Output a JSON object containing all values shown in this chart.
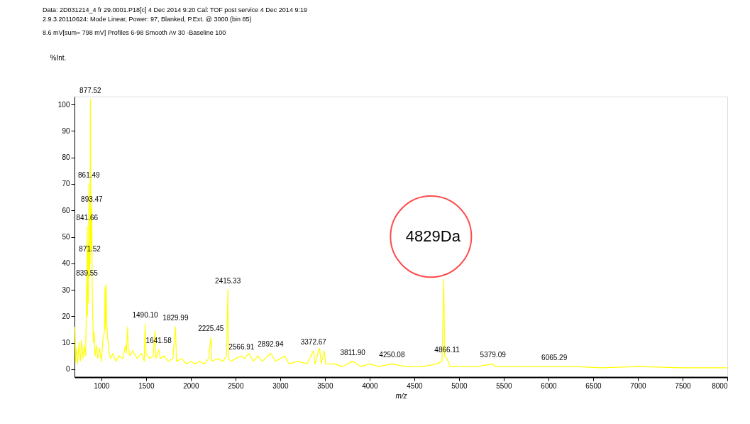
{
  "chart_data": {
    "type": "line",
    "title": "Data: 2D031214_4 fr 29.0001.P18[c] 4 Dec 2014 9:20 Cal: TOF post service 4 Dec 2014 9:19\n2.9.3.20110624: Mode Linear, Power: 97, Blanked, P.Ext. @ 3000 (bin 85)",
    "subtitle": "8.6 mV[sum= 798 mV] Profiles 6-98 Smooth Av 30 -Baseline 100",
    "xlabel": "m/z",
    "ylabel": "%Int.",
    "x": [
      706,
      712,
      720,
      735,
      750,
      765,
      780,
      795,
      810,
      825,
      835,
      839.55,
      841.66,
      845,
      850,
      855,
      861.49,
      866,
      871.52,
      875,
      877.52,
      880,
      885,
      893.47,
      898,
      905,
      912,
      920,
      930,
      945,
      960,
      980,
      1000,
      1020,
      1035,
      1042,
      1047,
      1053,
      1060,
      1070,
      1085,
      1100,
      1130,
      1160,
      1200,
      1240,
      1270,
      1280,
      1294,
      1300,
      1320,
      1350,
      1400,
      1450,
      1480,
      1490.1,
      1500,
      1540,
      1580,
      1600,
      1610,
      1641.58,
      1660,
      1700,
      1750,
      1800,
      1829.99,
      1840,
      1900,
      1950,
      2000,
      2050,
      2100,
      2150,
      2200,
      2225.45,
      2235,
      2300,
      2360,
      2400,
      2415.33,
      2420,
      2450,
      2500,
      2566.91,
      2600,
      2650,
      2700,
      2750,
      2800,
      2892.94,
      2950,
      3000,
      3050,
      3100,
      3200,
      3300,
      3372.67,
      3390,
      3440,
      3460,
      3490,
      3510,
      3600,
      3700,
      3811.9,
      3900,
      4000,
      4100,
      4250.08,
      4400,
      4600,
      4750,
      4810,
      4829,
      4840,
      4866.11,
      4900,
      5000,
      5200,
      5379.09,
      5400,
      5600,
      5800,
      6065.29,
      6300,
      6600,
      7000,
      7500,
      8000
    ],
    "series": [
      {
        "color": "#ffff00",
        "values": [
          16,
          3,
          8,
          2,
          10,
          3,
          11,
          4,
          9,
          5,
          30,
          33,
          54,
          20,
          47,
          25,
          70,
          35,
          42,
          40,
          102,
          82,
          45,
          61,
          30,
          18,
          10,
          14,
          5,
          9,
          4,
          8,
          3,
          12,
          14,
          31,
          15,
          32,
          18,
          12,
          7,
          4,
          6,
          3,
          5,
          4,
          9,
          6,
          16,
          9,
          5,
          7,
          4,
          6,
          3,
          17,
          6,
          4,
          5,
          14.5,
          4,
          7.4,
          4,
          5,
          3,
          4,
          16,
          3,
          4,
          2,
          3,
          2,
          3,
          2,
          4,
          12,
          3,
          4,
          3,
          5,
          30,
          4,
          3,
          4,
          5,
          4,
          6,
          3,
          5,
          3,
          6,
          3,
          4,
          5,
          2,
          3,
          2,
          7,
          2,
          8,
          2,
          7,
          2,
          2,
          1,
          3,
          1,
          2,
          1,
          2,
          1,
          1,
          2,
          3,
          34,
          5,
          4,
          1,
          1,
          1,
          2,
          1,
          1,
          1,
          1,
          1,
          0.5,
          1,
          0.5,
          0.5
        ]
      }
    ],
    "xlim": [
      700,
      8000
    ],
    "ylim": [
      -3,
      103
    ],
    "xticks": [
      1000,
      1500,
      2000,
      2500,
      3000,
      3500,
      4000,
      4500,
      5000,
      5500,
      6000,
      6500,
      7000,
      7500,
      8000
    ],
    "yticks": [
      0,
      10,
      20,
      30,
      40,
      50,
      60,
      70,
      80,
      90,
      100
    ],
    "grid": false,
    "marker": "none",
    "line_style": "solid",
    "annotations": [
      {
        "text": "4829Da",
        "x": 4829,
        "y": 34
      },
      {
        "text": "877.52",
        "x": 877.52,
        "y": 102
      },
      {
        "text": "861.49",
        "x": 861.49,
        "y": 70
      },
      {
        "text": "893.47",
        "x": 893.47,
        "y": 61
      },
      {
        "text": "841.66",
        "x": 841.66,
        "y": 54
      },
      {
        "text": "871.52",
        "x": 871.52,
        "y": 42
      },
      {
        "text": "839.55",
        "x": 839.55,
        "y": 33
      },
      {
        "text": "1490.10",
        "x": 1490.1,
        "y": 17
      },
      {
        "text": "1641.58",
        "x": 1641.58,
        "y": 7.4
      },
      {
        "text": "1829.99",
        "x": 1829.99,
        "y": 16
      },
      {
        "text": "2225.45",
        "x": 2225.45,
        "y": 12
      },
      {
        "text": "2415.33",
        "x": 2415.33,
        "y": 30
      },
      {
        "text": "2566.91",
        "x": 2566.91,
        "y": 5
      },
      {
        "text": "2892.94",
        "x": 2892.94,
        "y": 6
      },
      {
        "text": "3372.67",
        "x": 3372.67,
        "y": 7
      },
      {
        "text": "3811.90",
        "x": 3811.9,
        "y": 3
      },
      {
        "text": "4250.08",
        "x": 4250.08,
        "y": 2
      },
      {
        "text": "4866.11",
        "x": 4866.11,
        "y": 4
      },
      {
        "text": "5379.09",
        "x": 5379.09,
        "y": 2
      },
      {
        "text": "6065.29",
        "x": 6065.29,
        "y": 1
      }
    ]
  }
}
